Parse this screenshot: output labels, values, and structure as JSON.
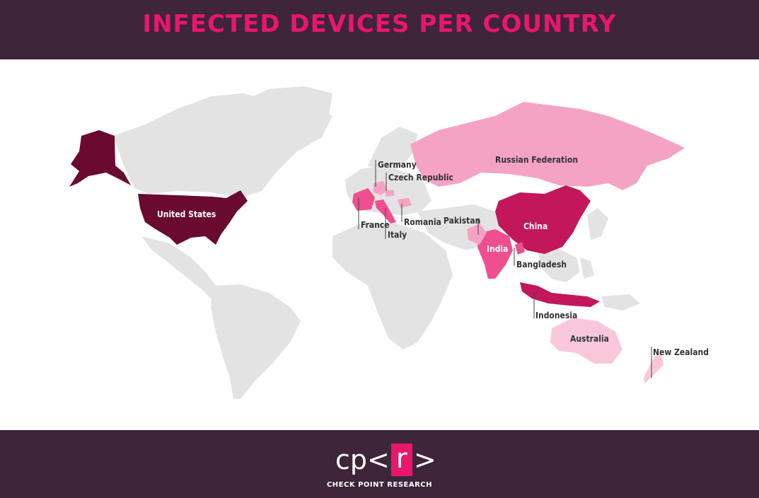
{
  "title": "INFECTED DEVICES PER COUNTRY",
  "colors": {
    "background_band": "#3e2539",
    "accent": "#e8176b",
    "land": "#e3e3e3",
    "tier_highest": "#6b0a2f",
    "tier_high": "#c2185b",
    "tier_mid": "#ef4f8e",
    "tier_low": "#f5a3c4",
    "tier_lowest": "#f8c8da"
  },
  "countries": [
    {
      "id": "united-states",
      "label": "United States",
      "tier": "highest"
    },
    {
      "id": "china",
      "label": "China",
      "tier": "high"
    },
    {
      "id": "indonesia",
      "label": "Indonesia",
      "tier": "high"
    },
    {
      "id": "india",
      "label": "India",
      "tier": "mid"
    },
    {
      "id": "france",
      "label": "France",
      "tier": "mid"
    },
    {
      "id": "italy",
      "label": "Italy",
      "tier": "mid"
    },
    {
      "id": "bangladesh",
      "label": "Bangladesh",
      "tier": "mid"
    },
    {
      "id": "russian-federation",
      "label": "Russian Federation",
      "tier": "low"
    },
    {
      "id": "germany",
      "label": "Germany",
      "tier": "low"
    },
    {
      "id": "czech-republic",
      "label": "Czech Republic",
      "tier": "low"
    },
    {
      "id": "romania",
      "label": "Romania",
      "tier": "low"
    },
    {
      "id": "pakistan",
      "label": "Pakistan",
      "tier": "low"
    },
    {
      "id": "australia",
      "label": "Australia",
      "tier": "lowest"
    },
    {
      "id": "new-zealand",
      "label": "New Zealand",
      "tier": "lowest"
    }
  ],
  "footer": {
    "logo_left": "cp<",
    "logo_r": "r",
    "logo_right": ">",
    "tagline": "CHECK POINT RESEARCH"
  }
}
